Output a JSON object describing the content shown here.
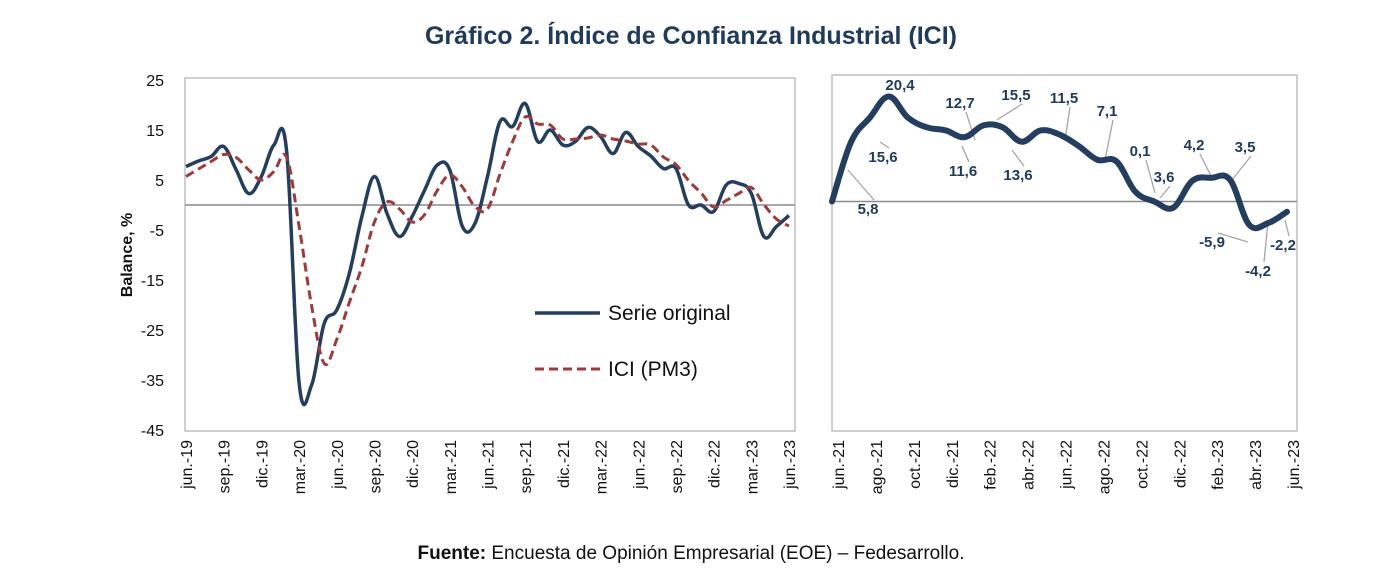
{
  "title": "Gráfico 2. Índice de Confianza Industrial (ICI)",
  "source": {
    "label": "Fuente:",
    "text": " Encuesta de Opinión Empresarial (EOE) – Fedesarrollo."
  },
  "colors": {
    "original": "#243e60",
    "pm3": "#9e3b3a",
    "title": "#1f3a5c",
    "zero_line": "#8c8c8c",
    "frame": "#bfbfbf"
  },
  "chart_data": [
    {
      "type": "line",
      "ylabel": "Balance, %",
      "ylim": [
        -45,
        25
      ],
      "yticks": [
        "25",
        "15",
        "5",
        "-5",
        "-15",
        "-25",
        "-35",
        "-45"
      ],
      "ytick_values": [
        25,
        15,
        5,
        -5,
        -15,
        -25,
        -35,
        -45
      ],
      "xtick_labels": [
        "jun.-19",
        "sep.-19",
        "dic.-19",
        "mar.-20",
        "jun.-20",
        "sep.-20",
        "dic.-20",
        "mar.-21",
        "jun.-21",
        "sep.-21",
        "dic.-21",
        "mar.-22",
        "jun.-22",
        "sep.-22",
        "dic.-22",
        "mar.-23",
        "jun.-23"
      ],
      "x_range": [
        "jun.-19",
        "jun.-23"
      ],
      "legend": {
        "position": "bottom-right",
        "entries": [
          "Serie original",
          "ICI (PM3)"
        ]
      },
      "grid": false,
      "series": [
        {
          "name": "Serie original",
          "style": "solid",
          "values": [
            7.7,
            8.8,
            9.7,
            11.7,
            7,
            2.3,
            5.7,
            12,
            11,
            -35.5,
            -36,
            -23.7,
            -21,
            -13.7,
            -2.3,
            5.7,
            -1.7,
            -6.3,
            -2.3,
            3,
            8,
            7,
            -4.3,
            -3.7,
            5.7,
            16.7,
            15.7,
            20.3,
            12.7,
            15,
            12,
            12.7,
            15.5,
            13.7,
            10.3,
            14.5,
            11.7,
            9.8,
            7.3,
            7.3,
            0,
            0,
            -1.3,
            4,
            4.3,
            2.3,
            -6.3,
            -4.3,
            -2.1
          ]
        },
        {
          "name": "ICI (PM3)",
          "style": "dashed",
          "values": [
            5.7,
            7.2,
            8.7,
            10.1,
            9.5,
            7,
            5,
            6.7,
            9.6,
            -4.2,
            -20.2,
            -31.7,
            -26.9,
            -19.5,
            -12.3,
            -3.4,
            0.6,
            -0.8,
            -3.4,
            -1.9,
            2.9,
            6,
            3.6,
            -0.3,
            -0.8,
            6.2,
            12.7,
            17.6,
            16.2,
            16,
            13.2,
            13.2,
            13.4,
            14,
            13.2,
            12.8,
            12.2,
            12,
            9.6,
            8.1,
            4.9,
            2.4,
            -0.4,
            0.9,
            2.3,
            3.5,
            0.1,
            -2.8,
            -4.2
          ]
        }
      ]
    },
    {
      "type": "line",
      "xtick_labels": [
        "jun.-21",
        "ago.-21",
        "oct.-21",
        "dic.-21",
        "feb.-22",
        "abr.-22",
        "jun.-22",
        "ago.-22",
        "oct.-22",
        "dic.-22",
        "feb.-23",
        "abr.-23",
        "jun.-23"
      ],
      "x_range": [
        "jun.-21",
        "jun.-23"
      ],
      "grid": false,
      "series": [
        {
          "values": [
            0,
            11.5,
            16.3,
            20.4,
            16.3,
            14.4,
            13.8,
            12.5,
            14.8,
            14.4,
            11.6,
            13.8,
            13,
            10.8,
            8.1,
            7.8,
            1.9,
            0,
            -1.2,
            4,
            4.6,
            4.2,
            -4.5,
            -4.2,
            -2
          ]
        }
      ],
      "data_labels": [
        "5,8",
        "15,6",
        "20,4",
        "12,7",
        "11,6",
        "15,5",
        "13,6",
        "11,5",
        "7,1",
        "0,1",
        "3,6",
        "4,2",
        "3,5",
        "-5,9",
        "-4,2",
        "-2,2"
      ]
    }
  ]
}
